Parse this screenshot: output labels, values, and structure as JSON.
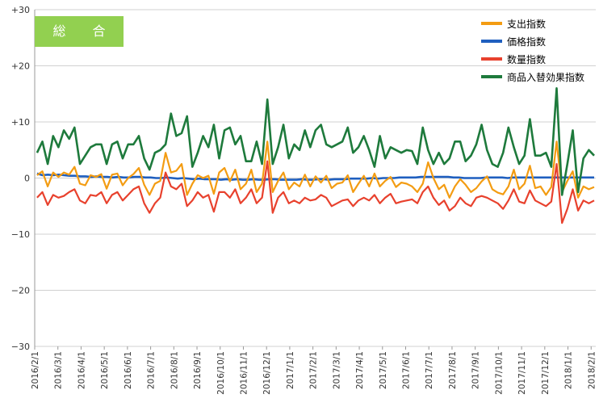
{
  "badge": {
    "label": "総 合"
  },
  "chart_data": {
    "type": "line",
    "ylim": [
      -30,
      30
    ],
    "yticks": [
      "+30",
      "+20",
      "+10",
      "0",
      "−10",
      "−20",
      "−30"
    ],
    "ytick_values": [
      30,
      20,
      10,
      0,
      -10,
      -20,
      -30
    ],
    "xtick_labels": [
      "2016/2/1",
      "2016/3/1",
      "2016/4/1",
      "2016/5/1",
      "2016/6/1",
      "2016/7/1",
      "2016/8/1",
      "2016/9/1",
      "2016/10/1",
      "2016/11/1",
      "2016/12/1",
      "2017/1/1",
      "2017/2/1",
      "2017/3/1",
      "2017/4/1",
      "2017/5/1",
      "2017/6/1",
      "2017/7/1",
      "2017/8/1",
      "2017/9/1",
      "2017/10/1",
      "2017/11/1",
      "2017/12/1",
      "2018/1/1",
      "2018/2/1"
    ],
    "grid": "horizontal",
    "legend_position": "top-right",
    "series": [
      {
        "name": "支出指数",
        "color": "#f39c12",
        "values": [
          0.5,
          1.2,
          -1.5,
          1.0,
          0.2,
          1.0,
          0.6,
          2.0,
          -1.0,
          -1.3,
          0.5,
          0.2,
          0.7,
          -1.9,
          0.6,
          0.8,
          -1.3,
          0.0,
          0.7,
          1.8,
          -1.2,
          -3.0,
          -1.0,
          -0.5,
          4.5,
          1.0,
          1.3,
          2.5,
          -3.0,
          -1.0,
          0.5,
          0.0,
          0.4,
          -2.8,
          1.0,
          1.8,
          -0.6,
          1.5,
          -2.0,
          -1.0,
          1.5,
          -2.5,
          -1.0,
          6.5,
          -2.5,
          -0.5,
          1.0,
          -2.0,
          -0.8,
          -1.5,
          0.6,
          -1.5,
          0.3,
          -0.8,
          0.4,
          -1.8,
          -1.0,
          -0.8,
          0.5,
          -2.5,
          -1.0,
          0.4,
          -1.5,
          0.8,
          -1.5,
          -0.5,
          0.2,
          -1.6,
          -0.8,
          -1.0,
          -1.5,
          -2.5,
          -1.0,
          2.8,
          0.0,
          -2.0,
          -1.2,
          -3.5,
          -1.5,
          -0.2,
          -1.2,
          -2.5,
          -1.8,
          -0.6,
          0.3,
          -2.0,
          -2.6,
          -2.9,
          -1.5,
          1.5,
          -2.0,
          -1.0,
          2.2,
          -1.8,
          -1.5,
          -3.0,
          -1.6,
          6.5,
          -2.5,
          -0.5,
          1.2,
          -3.5,
          -1.5,
          -2.0,
          -1.6
        ],
        "line_width": 2.2
      },
      {
        "name": "価格指数",
        "color": "#1f5fbf",
        "values": [
          0.8,
          0.5,
          0.6,
          0.5,
          0.6,
          0.5,
          0.4,
          0.4,
          0.3,
          0.3,
          0.2,
          0.3,
          0.2,
          0.2,
          0.1,
          0.2,
          0.1,
          0.1,
          0.2,
          0.2,
          0.1,
          0.1,
          0.0,
          0.0,
          0.1,
          0.0,
          -0.1,
          0.0,
          -0.1,
          -0.2,
          -0.1,
          -0.2,
          -0.2,
          -0.2,
          -0.3,
          -0.2,
          -0.3,
          -0.2,
          -0.3,
          -0.3,
          -0.2,
          -0.3,
          -0.3,
          -0.2,
          -0.2,
          -0.3,
          -0.3,
          -0.3,
          -0.3,
          -0.2,
          -0.3,
          -0.3,
          -0.2,
          -0.2,
          -0.3,
          -0.2,
          -0.2,
          -0.2,
          -0.1,
          -0.1,
          -0.1,
          -0.1,
          0.0,
          -0.1,
          0.0,
          0.0,
          0.0,
          0.1,
          0.1,
          0.1,
          0.1,
          0.2,
          0.2,
          0.2,
          0.2,
          0.2,
          0.2,
          0.1,
          0.1,
          0.0,
          0.0,
          0.0,
          0.0,
          0.1,
          0.1,
          0.1,
          0.1,
          0.0,
          0.1,
          0.1,
          0.1,
          0.1,
          0.1,
          0.1,
          0.1,
          0.1,
          0.1,
          0.1,
          0.1,
          0.1,
          0.1,
          0.1,
          0.1,
          0.1
        ],
        "line_width": 2.6
      },
      {
        "name": "数量指数",
        "color": "#e8412d",
        "values": [
          -3.5,
          -2.5,
          -4.8,
          -3.0,
          -3.5,
          -3.2,
          -2.5,
          -2.0,
          -4.0,
          -4.5,
          -3.0,
          -3.2,
          -2.5,
          -4.5,
          -3.0,
          -2.5,
          -4.0,
          -3.0,
          -2.0,
          -1.5,
          -4.5,
          -6.2,
          -4.5,
          -3.5,
          1.0,
          -1.5,
          -2.0,
          -1.0,
          -5.0,
          -4.0,
          -2.5,
          -3.5,
          -3.0,
          -6.0,
          -2.5,
          -2.5,
          -3.5,
          -2.0,
          -4.5,
          -3.5,
          -2.0,
          -4.5,
          -3.5,
          3.0,
          -6.2,
          -3.5,
          -2.5,
          -4.5,
          -4.0,
          -4.5,
          -3.5,
          -4.0,
          -3.8,
          -3.0,
          -3.5,
          -5.0,
          -4.5,
          -4.0,
          -3.8,
          -5.0,
          -4.0,
          -3.5,
          -4.0,
          -3.0,
          -4.5,
          -3.5,
          -2.8,
          -4.5,
          -4.2,
          -4.0,
          -3.8,
          -4.5,
          -2.5,
          -1.5,
          -3.5,
          -4.8,
          -4.0,
          -5.8,
          -5.0,
          -3.5,
          -4.5,
          -5.0,
          -3.5,
          -3.2,
          -3.5,
          -4.0,
          -4.5,
          -5.5,
          -4.0,
          -2.0,
          -4.2,
          -4.5,
          -2.2,
          -4.0,
          -4.5,
          -5.0,
          -4.2,
          2.5,
          -8.0,
          -5.5,
          -2.0,
          -5.8,
          -4.0,
          -4.5,
          -4.0
        ],
        "line_width": 2.2
      },
      {
        "name": "商品入替効果指数",
        "color": "#1e7a3c",
        "values": [
          4.5,
          6.5,
          2.5,
          7.5,
          5.5,
          8.5,
          7.0,
          9.0,
          2.5,
          4.0,
          5.5,
          6.0,
          6.0,
          2.5,
          6.0,
          6.5,
          3.5,
          6.0,
          6.0,
          7.5,
          3.5,
          1.5,
          4.5,
          5.0,
          6.0,
          11.5,
          7.5,
          8.0,
          11.0,
          2.0,
          4.5,
          7.5,
          5.5,
          9.5,
          3.5,
          8.5,
          9.0,
          6.0,
          7.5,
          3.0,
          3.0,
          6.5,
          2.5,
          14.0,
          2.5,
          5.5,
          9.5,
          3.5,
          6.0,
          5.0,
          8.5,
          5.5,
          8.5,
          9.5,
          6.0,
          5.5,
          6.0,
          6.5,
          9.0,
          4.5,
          5.5,
          7.5,
          5.0,
          2.0,
          7.5,
          3.5,
          5.5,
          5.0,
          4.5,
          5.0,
          4.8,
          2.5,
          9.0,
          5.0,
          2.5,
          4.5,
          2.5,
          3.5,
          6.5,
          6.5,
          3.0,
          4.0,
          6.0,
          9.5,
          5.0,
          2.5,
          2.0,
          4.5,
          9.0,
          5.5,
          2.5,
          4.0,
          10.5,
          4.0,
          4.0,
          4.5,
          2.0,
          16.0,
          -3.0,
          2.5,
          8.5,
          -2.5,
          3.5,
          5.0,
          4.0
        ],
        "line_width": 2.6
      }
    ]
  }
}
